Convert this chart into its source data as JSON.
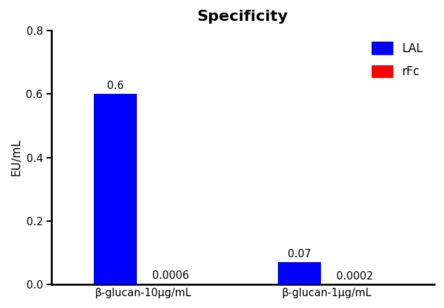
{
  "title": "Specificity",
  "ylabel": "EU/mL",
  "groups": [
    "β-glucan-10μg/mL",
    "β-glucan-1μg/mL"
  ],
  "lal_values": [
    0.6,
    0.07
  ],
  "rfc_values": [
    0.0006,
    0.0002
  ],
  "lal_labels": [
    "0.6",
    "0.07"
  ],
  "rfc_labels": [
    "0.0006",
    "0.0002"
  ],
  "lal_color": "#0000ff",
  "rfc_color": "#ff0000",
  "ylim": [
    0,
    0.8
  ],
  "yticks": [
    0.0,
    0.2,
    0.4,
    0.6,
    0.8
  ],
  "bar_width": 0.28,
  "title_fontsize": 16,
  "axis_fontsize": 12,
  "tick_fontsize": 11,
  "label_fontsize": 11,
  "legend_fontsize": 12,
  "background_color": "#ffffff",
  "group_centers": [
    1.0,
    2.2
  ],
  "xlim": [
    0.4,
    2.9
  ]
}
